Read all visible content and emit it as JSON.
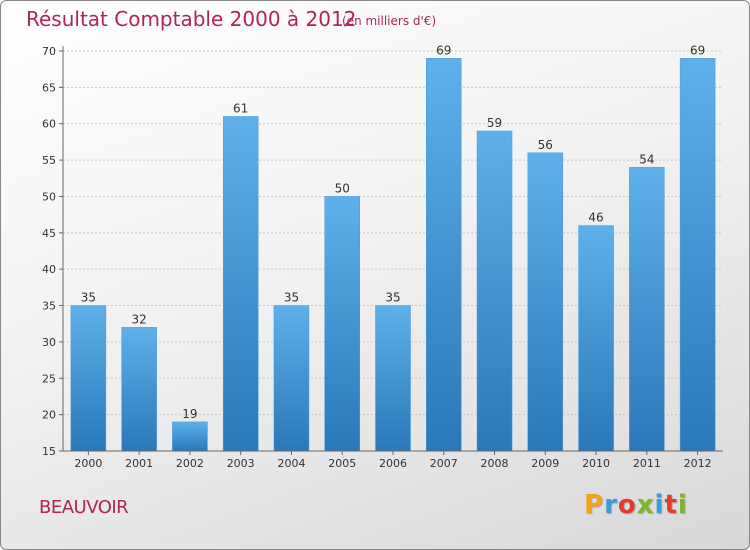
{
  "title": "Résultat Comptable 2000 à 2012",
  "subtitle": "(en milliers d'€)",
  "commune": "BEAUVOIR",
  "logo": {
    "text": "Proxiti",
    "colors": [
      "#f4a21b",
      "#3b9bd8",
      "#e23b2e",
      "#7ab729",
      "#3b9bd8",
      "#e23b2e",
      "#7ab729"
    ]
  },
  "colors": {
    "bar_top": "#5fb0ea",
    "bar_bottom": "#2a78b8",
    "title": "#b0245a"
  },
  "chart_data": {
    "type": "bar",
    "title": "Résultat Comptable 2000 à 2012",
    "xlabel": "",
    "ylabel": "(en milliers d'€)",
    "categories": [
      "2000",
      "2001",
      "2002",
      "2003",
      "2004",
      "2005",
      "2006",
      "2007",
      "2008",
      "2009",
      "2010",
      "2011",
      "2012"
    ],
    "values": [
      35,
      32,
      19,
      61,
      35,
      50,
      35,
      69,
      59,
      56,
      46,
      54,
      69
    ],
    "ylim": [
      15,
      70
    ],
    "yticks": [
      15,
      20,
      25,
      30,
      35,
      40,
      45,
      50,
      55,
      60,
      65,
      70
    ],
    "grid": true
  }
}
